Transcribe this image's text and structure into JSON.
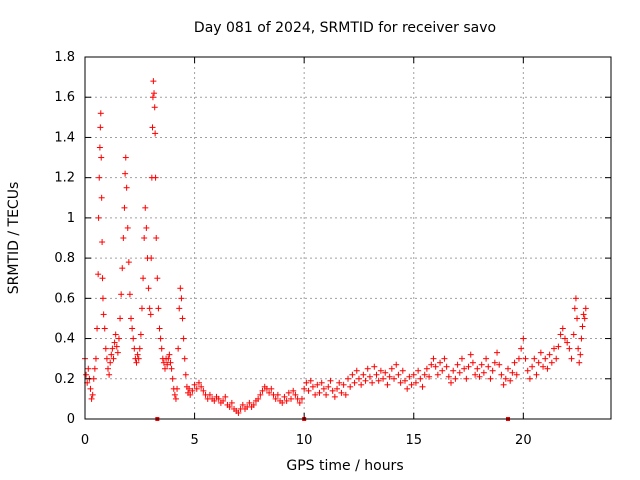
{
  "chart_data": {
    "type": "scatter",
    "title": "Day 081 of 2024, SRMTID for receiver savo",
    "xlabel": "GPS time / hours",
    "ylabel": "SRMTID / TECUs",
    "xlim": [
      0,
      24
    ],
    "ylim": [
      0,
      1.8
    ],
    "xticks": [
      0,
      5,
      10,
      15,
      20
    ],
    "yticks": [
      0,
      0.2,
      0.4,
      0.6,
      0.8,
      1,
      1.2,
      1.4,
      1.6,
      1.8
    ],
    "xtick_labels": [
      "0",
      "5",
      "10",
      "15",
      "20"
    ],
    "ytick_labels": [
      "0",
      "0.2",
      "0.4",
      "0.6",
      "0.8",
      "1",
      "1.2",
      "1.4",
      "1.6",
      "1.8"
    ],
    "grid": true,
    "marker": "plus",
    "series": [
      {
        "name": "SRMTID",
        "color": "#ff0000",
        "points": [
          [
            0.0,
            0.3
          ],
          [
            0.05,
            0.22
          ],
          [
            0.1,
            0.18
          ],
          [
            0.15,
            0.25
          ],
          [
            0.2,
            0.2
          ],
          [
            0.25,
            0.15
          ],
          [
            0.3,
            0.1
          ],
          [
            0.35,
            0.12
          ],
          [
            0.4,
            0.2
          ],
          [
            0.45,
            0.25
          ],
          [
            0.5,
            0.3
          ],
          [
            0.55,
            0.45
          ],
          [
            0.6,
            0.72
          ],
          [
            0.62,
            1.0
          ],
          [
            0.65,
            1.2
          ],
          [
            0.68,
            1.35
          ],
          [
            0.7,
            1.45
          ],
          [
            0.72,
            1.52
          ],
          [
            0.74,
            1.3
          ],
          [
            0.76,
            1.1
          ],
          [
            0.78,
            0.88
          ],
          [
            0.8,
            0.7
          ],
          [
            0.82,
            0.6
          ],
          [
            0.85,
            0.52
          ],
          [
            0.9,
            0.45
          ],
          [
            0.95,
            0.35
          ],
          [
            1.0,
            0.3
          ],
          [
            1.05,
            0.25
          ],
          [
            1.1,
            0.22
          ],
          [
            1.15,
            0.28
          ],
          [
            1.2,
            0.32
          ],
          [
            1.25,
            0.35
          ],
          [
            1.3,
            0.3
          ],
          [
            1.35,
            0.38
          ],
          [
            1.4,
            0.42
          ],
          [
            1.45,
            0.36
          ],
          [
            1.5,
            0.33
          ],
          [
            1.55,
            0.4
          ],
          [
            1.6,
            0.5
          ],
          [
            1.65,
            0.62
          ],
          [
            1.7,
            0.75
          ],
          [
            1.75,
            0.9
          ],
          [
            1.8,
            1.05
          ],
          [
            1.83,
            1.22
          ],
          [
            1.86,
            1.3
          ],
          [
            1.9,
            1.15
          ],
          [
            1.95,
            0.95
          ],
          [
            2.0,
            0.78
          ],
          [
            2.05,
            0.62
          ],
          [
            2.1,
            0.5
          ],
          [
            2.15,
            0.45
          ],
          [
            2.2,
            0.4
          ],
          [
            2.25,
            0.35
          ],
          [
            2.3,
            0.3
          ],
          [
            2.35,
            0.28
          ],
          [
            2.4,
            0.32
          ],
          [
            2.45,
            0.3
          ],
          [
            2.5,
            0.35
          ],
          [
            2.55,
            0.42
          ],
          [
            2.6,
            0.55
          ],
          [
            2.65,
            0.7
          ],
          [
            2.7,
            0.9
          ],
          [
            2.75,
            1.05
          ],
          [
            2.8,
            0.95
          ],
          [
            2.85,
            0.8
          ],
          [
            2.9,
            0.65
          ],
          [
            2.95,
            0.55
          ],
          [
            3.0,
            0.52
          ],
          [
            3.02,
            0.8
          ],
          [
            3.05,
            1.2
          ],
          [
            3.08,
            1.45
          ],
          [
            3.1,
            1.6
          ],
          [
            3.12,
            1.68
          ],
          [
            3.15,
            1.62
          ],
          [
            3.18,
            1.55
          ],
          [
            3.2,
            1.42
          ],
          [
            3.22,
            1.2
          ],
          [
            3.25,
            0.9
          ],
          [
            3.3,
            0.7
          ],
          [
            3.35,
            0.55
          ],
          [
            3.4,
            0.45
          ],
          [
            3.45,
            0.4
          ],
          [
            3.5,
            0.35
          ],
          [
            3.55,
            0.3
          ],
          [
            3.6,
            0.28
          ],
          [
            3.65,
            0.25
          ],
          [
            3.7,
            0.3
          ],
          [
            3.75,
            0.27
          ],
          [
            3.8,
            0.3
          ],
          [
            3.85,
            0.32
          ],
          [
            3.9,
            0.28
          ],
          [
            3.95,
            0.25
          ],
          [
            4.0,
            0.2
          ],
          [
            4.05,
            0.15
          ],
          [
            4.1,
            0.12
          ],
          [
            4.15,
            0.1
          ],
          [
            4.2,
            0.15
          ],
          [
            4.25,
            0.35
          ],
          [
            4.3,
            0.55
          ],
          [
            4.35,
            0.65
          ],
          [
            4.4,
            0.6
          ],
          [
            4.45,
            0.5
          ],
          [
            4.5,
            0.4
          ],
          [
            4.55,
            0.3
          ],
          [
            4.6,
            0.22
          ],
          [
            4.65,
            0.16
          ],
          [
            4.7,
            0.13
          ],
          [
            4.75,
            0.15
          ],
          [
            4.8,
            0.12
          ],
          [
            4.9,
            0.14
          ],
          [
            5.0,
            0.17
          ],
          [
            5.1,
            0.15
          ],
          [
            5.2,
            0.18
          ],
          [
            5.3,
            0.16
          ],
          [
            5.4,
            0.14
          ],
          [
            5.5,
            0.12
          ],
          [
            5.6,
            0.1
          ],
          [
            5.7,
            0.12
          ],
          [
            5.8,
            0.1
          ],
          [
            5.9,
            0.09
          ],
          [
            6.0,
            0.11
          ],
          [
            6.1,
            0.1
          ],
          [
            6.2,
            0.08
          ],
          [
            6.3,
            0.09
          ],
          [
            6.4,
            0.11
          ],
          [
            6.5,
            0.07
          ],
          [
            6.6,
            0.06
          ],
          [
            6.7,
            0.08
          ],
          [
            6.8,
            0.05
          ],
          [
            6.9,
            0.04
          ],
          [
            7.0,
            0.03
          ],
          [
            7.1,
            0.05
          ],
          [
            7.2,
            0.07
          ],
          [
            7.3,
            0.05
          ],
          [
            7.4,
            0.06
          ],
          [
            7.5,
            0.08
          ],
          [
            7.6,
            0.06
          ],
          [
            7.7,
            0.07
          ],
          [
            7.8,
            0.09
          ],
          [
            7.9,
            0.1
          ],
          [
            8.0,
            0.12
          ],
          [
            8.1,
            0.14
          ],
          [
            8.2,
            0.16
          ],
          [
            8.3,
            0.15
          ],
          [
            8.4,
            0.13
          ],
          [
            8.5,
            0.15
          ],
          [
            8.6,
            0.12
          ],
          [
            8.7,
            0.1
          ],
          [
            8.8,
            0.12
          ],
          [
            8.9,
            0.09
          ],
          [
            9.0,
            0.08
          ],
          [
            9.1,
            0.11
          ],
          [
            9.2,
            0.09
          ],
          [
            9.3,
            0.13
          ],
          [
            9.4,
            0.1
          ],
          [
            9.5,
            0.14
          ],
          [
            9.6,
            0.12
          ],
          [
            9.7,
            0.1
          ],
          [
            9.8,
            0.08
          ],
          [
            9.9,
            0.1
          ],
          [
            10.0,
            0.15
          ],
          [
            10.1,
            0.18
          ],
          [
            10.2,
            0.14
          ],
          [
            10.3,
            0.19
          ],
          [
            10.4,
            0.16
          ],
          [
            10.5,
            0.12
          ],
          [
            10.6,
            0.17
          ],
          [
            10.7,
            0.13
          ],
          [
            10.8,
            0.18
          ],
          [
            10.9,
            0.15
          ],
          [
            11.0,
            0.12
          ],
          [
            11.1,
            0.16
          ],
          [
            11.2,
            0.19
          ],
          [
            11.3,
            0.14
          ],
          [
            11.4,
            0.11
          ],
          [
            11.5,
            0.15
          ],
          [
            11.6,
            0.18
          ],
          [
            11.7,
            0.13
          ],
          [
            11.8,
            0.17
          ],
          [
            11.9,
            0.12
          ],
          [
            12.0,
            0.2
          ],
          [
            12.1,
            0.16
          ],
          [
            12.2,
            0.22
          ],
          [
            12.3,
            0.18
          ],
          [
            12.4,
            0.24
          ],
          [
            12.5,
            0.2
          ],
          [
            12.6,
            0.17
          ],
          [
            12.7,
            0.22
          ],
          [
            12.8,
            0.19
          ],
          [
            12.9,
            0.25
          ],
          [
            13.0,
            0.21
          ],
          [
            13.1,
            0.18
          ],
          [
            13.2,
            0.26
          ],
          [
            13.3,
            0.22
          ],
          [
            13.4,
            0.19
          ],
          [
            13.5,
            0.24
          ],
          [
            13.6,
            0.2
          ],
          [
            13.7,
            0.23
          ],
          [
            13.8,
            0.17
          ],
          [
            13.9,
            0.21
          ],
          [
            14.0,
            0.25
          ],
          [
            14.1,
            0.2
          ],
          [
            14.2,
            0.27
          ],
          [
            14.3,
            0.22
          ],
          [
            14.4,
            0.18
          ],
          [
            14.5,
            0.24
          ],
          [
            14.6,
            0.19
          ],
          [
            14.7,
            0.15
          ],
          [
            14.8,
            0.21
          ],
          [
            14.9,
            0.17
          ],
          [
            15.0,
            0.22
          ],
          [
            15.1,
            0.18
          ],
          [
            15.2,
            0.24
          ],
          [
            15.3,
            0.2
          ],
          [
            15.4,
            0.16
          ],
          [
            15.5,
            0.22
          ],
          [
            15.6,
            0.25
          ],
          [
            15.7,
            0.21
          ],
          [
            15.8,
            0.27
          ],
          [
            15.9,
            0.3
          ],
          [
            16.0,
            0.26
          ],
          [
            16.1,
            0.22
          ],
          [
            16.2,
            0.28
          ],
          [
            16.3,
            0.24
          ],
          [
            16.4,
            0.3
          ],
          [
            16.5,
            0.26
          ],
          [
            16.6,
            0.21
          ],
          [
            16.7,
            0.18
          ],
          [
            16.8,
            0.24
          ],
          [
            16.9,
            0.2
          ],
          [
            17.0,
            0.27
          ],
          [
            17.1,
            0.23
          ],
          [
            17.2,
            0.3
          ],
          [
            17.3,
            0.25
          ],
          [
            17.4,
            0.2
          ],
          [
            17.5,
            0.26
          ],
          [
            17.6,
            0.32
          ],
          [
            17.7,
            0.28
          ],
          [
            17.8,
            0.22
          ],
          [
            17.9,
            0.25
          ],
          [
            18.0,
            0.21
          ],
          [
            18.1,
            0.27
          ],
          [
            18.2,
            0.23
          ],
          [
            18.3,
            0.3
          ],
          [
            18.4,
            0.26
          ],
          [
            18.5,
            0.2
          ],
          [
            18.6,
            0.24
          ],
          [
            18.7,
            0.28
          ],
          [
            18.8,
            0.33
          ],
          [
            18.9,
            0.27
          ],
          [
            19.0,
            0.22
          ],
          [
            19.1,
            0.17
          ],
          [
            19.2,
            0.2
          ],
          [
            19.3,
            0.25
          ],
          [
            19.4,
            0.19
          ],
          [
            19.5,
            0.23
          ],
          [
            19.6,
            0.28
          ],
          [
            19.7,
            0.22
          ],
          [
            19.8,
            0.3
          ],
          [
            19.9,
            0.35
          ],
          [
            20.0,
            0.4
          ],
          [
            20.1,
            0.3
          ],
          [
            20.2,
            0.24
          ],
          [
            20.3,
            0.2
          ],
          [
            20.4,
            0.26
          ],
          [
            20.5,
            0.3
          ],
          [
            20.6,
            0.22
          ],
          [
            20.7,
            0.28
          ],
          [
            20.8,
            0.33
          ],
          [
            20.9,
            0.26
          ],
          [
            21.0,
            0.3
          ],
          [
            21.1,
            0.25
          ],
          [
            21.2,
            0.32
          ],
          [
            21.3,
            0.28
          ],
          [
            21.4,
            0.35
          ],
          [
            21.5,
            0.3
          ],
          [
            21.6,
            0.36
          ],
          [
            21.7,
            0.42
          ],
          [
            21.8,
            0.45
          ],
          [
            21.9,
            0.4
          ],
          [
            22.0,
            0.38
          ],
          [
            22.1,
            0.35
          ],
          [
            22.2,
            0.3
          ],
          [
            22.3,
            0.42
          ],
          [
            22.35,
            0.55
          ],
          [
            22.4,
            0.6
          ],
          [
            22.45,
            0.5
          ],
          [
            22.5,
            0.35
          ],
          [
            22.55,
            0.28
          ],
          [
            22.6,
            0.32
          ],
          [
            22.65,
            0.4
          ],
          [
            22.7,
            0.46
          ],
          [
            22.75,
            0.52
          ],
          [
            22.8,
            0.5
          ],
          [
            22.85,
            0.55
          ]
        ]
      }
    ],
    "baseline_marks": [
      3.3,
      10.0,
      19.3
    ]
  }
}
